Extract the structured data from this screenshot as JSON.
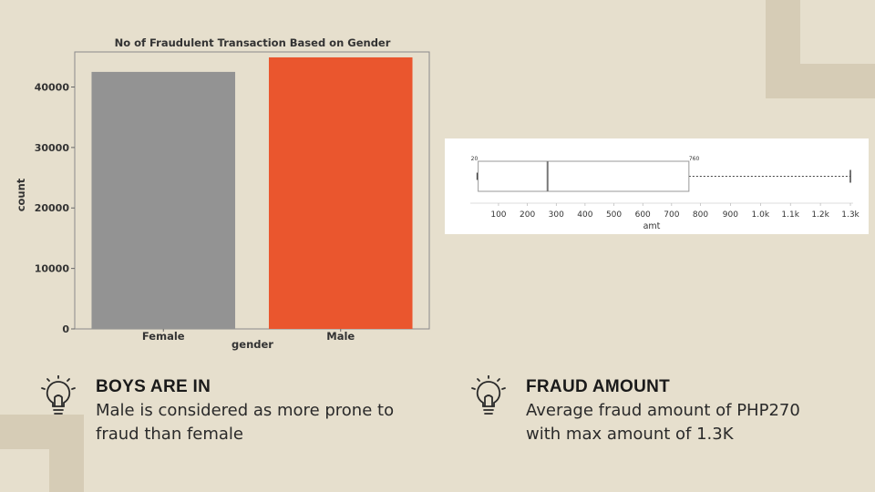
{
  "chart_data": [
    {
      "type": "bar",
      "title": "No of Fraudulent Transaction Based on Gender",
      "xlabel": "gender",
      "ylabel": "count",
      "categories": [
        "Female",
        "Male"
      ],
      "values": [
        42500,
        44900
      ],
      "colors": [
        "#939393",
        "#ea562e"
      ],
      "ylim": [
        0,
        45800
      ],
      "yticks": [
        0,
        10000,
        20000,
        30000,
        40000
      ],
      "grid": false
    },
    {
      "type": "box",
      "orientation": "horizontal",
      "xlabel": "amt",
      "min": 20,
      "q1": 20,
      "median": 270,
      "q3": 760,
      "max": 1300,
      "whisker_label_low": "20",
      "whisker_label_high": "760",
      "ticks": [
        100,
        200,
        300,
        400,
        500,
        600,
        700,
        800,
        900,
        1000,
        1100,
        1200,
        1300
      ],
      "tick_labels": [
        "100",
        "200",
        "300",
        "400",
        "500",
        "600",
        "700",
        "800",
        "900",
        "1.0k",
        "1.1k",
        "1.2k",
        "1.3k"
      ]
    }
  ],
  "insights": [
    {
      "icon": "lightbulb-icon",
      "heading": "BOYS ARE IN",
      "line1": "Male is considered as more prone to",
      "line2": "fraud than female"
    },
    {
      "icon": "lightbulb-icon",
      "heading": "FRAUD AMOUNT",
      "line1": "Average fraud amount of PHP270",
      "line2": "with max amount of 1.3K"
    }
  ]
}
